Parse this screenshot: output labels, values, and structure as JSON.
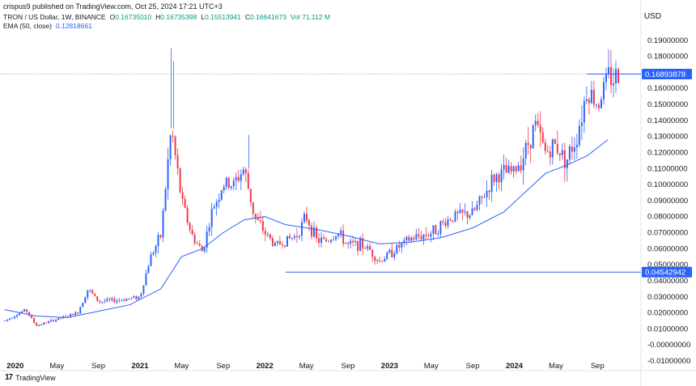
{
  "header": {
    "publisher": "crispus9 published on TradingView.com, Oct 25, 2024 17:21 UTC+3",
    "symbol": "TRON / US Dollar, 1W, BINANCE",
    "ohlc": [
      {
        "key": "O",
        "value": "0.16735010"
      },
      {
        "key": "H",
        "value": "0.16735398"
      },
      {
        "key": "L",
        "value": "0.15513941"
      },
      {
        "key": "C",
        "value": "0.16641673"
      }
    ],
    "vol": "Vol 71.112 M",
    "ema_label": "EMA (50, close)",
    "ema_value": "0.12818661",
    "currency": "USD"
  },
  "footer": {
    "brand": "TradingView",
    "logo": "17"
  },
  "colors": {
    "up": "#2962ff",
    "down": "#f23645",
    "ema": "#2962ff",
    "hline": "#2962ff",
    "price_dots": "#9598a1"
  },
  "chart_data": {
    "type": "candlestick",
    "title": "TRON / US Dollar, 1W, BINANCE",
    "y_axis": {
      "side": "right",
      "range": [
        -0.01,
        0.2
      ],
      "ticks": [
        "0.19000000",
        "0.18000000",
        "0.16000000",
        "0.15000000",
        "0.14000000",
        "0.13000000",
        "0.12000000",
        "0.11000000",
        "0.10000000",
        "0.09000000",
        "0.08000000",
        "0.07000000",
        "0.06000000",
        "0.05000000",
        "0.04000000",
        "0.03000000",
        "0.02000000",
        "0.01000000",
        "-0.00000000",
        "-0.01000000"
      ]
    },
    "x_ticks": [
      "2020",
      "May",
      "Sep",
      "2021",
      "May",
      "Sep",
      "2022",
      "May",
      "Sep",
      "2023",
      "May",
      "Sep",
      "2024",
      "May",
      "Sep"
    ],
    "x_tick_dates": [
      "2020-01",
      "2020-05",
      "2020-09",
      "2021-01",
      "2021-05",
      "2021-09",
      "2022-01",
      "2022-05",
      "2022-09",
      "2023-01",
      "2023-05",
      "2023-09",
      "2024-01",
      "2024-05",
      "2024-09"
    ],
    "price_labels": [
      {
        "value": 0.16893878,
        "label": "0.16893878",
        "style": "dotted"
      },
      {
        "value": 0.04542942,
        "label": "0.04542942",
        "style": "solid"
      }
    ],
    "horizontal_lines": [
      {
        "value": 0.16893878,
        "from": "2024-08",
        "to": "2024-10"
      },
      {
        "value": 0.04542942,
        "from": "2022-03",
        "to": "2024-10"
      }
    ],
    "anchor_points": [
      [
        "2019-12",
        0.015
      ],
      [
        "2020-02",
        0.022
      ],
      [
        "2020-03",
        0.012
      ],
      [
        "2020-05",
        0.016
      ],
      [
        "2020-07",
        0.02
      ],
      [
        "2020-08",
        0.035
      ],
      [
        "2020-09",
        0.027
      ],
      [
        "2020-11",
        0.028
      ],
      [
        "2021-01",
        0.03
      ],
      [
        "2021-02",
        0.055
      ],
      [
        "2021-03",
        0.068
      ],
      [
        "2021-04",
        0.135
      ],
      [
        "2021-05",
        0.09
      ],
      [
        "2021-06",
        0.068
      ],
      [
        "2021-07",
        0.058
      ],
      [
        "2021-08",
        0.085
      ],
      [
        "2021-09",
        0.1
      ],
      [
        "2021-10",
        0.1
      ],
      [
        "2021-11",
        0.11
      ],
      [
        "2021-12",
        0.08
      ],
      [
        "2022-01",
        0.07
      ],
      [
        "2022-02",
        0.062
      ],
      [
        "2022-03",
        0.065
      ],
      [
        "2022-04",
        0.068
      ],
      [
        "2022-05",
        0.08
      ],
      [
        "2022-06",
        0.065
      ],
      [
        "2022-07",
        0.065
      ],
      [
        "2022-08",
        0.07
      ],
      [
        "2022-09",
        0.062
      ],
      [
        "2022-10",
        0.063
      ],
      [
        "2022-11",
        0.06
      ],
      [
        "2022-12",
        0.052
      ],
      [
        "2023-01",
        0.057
      ],
      [
        "2023-03",
        0.066
      ],
      [
        "2023-05",
        0.07
      ],
      [
        "2023-07",
        0.08
      ],
      [
        "2023-09",
        0.082
      ],
      [
        "2023-10",
        0.092
      ],
      [
        "2023-11",
        0.104
      ],
      [
        "2023-12",
        0.107
      ],
      [
        "2024-01",
        0.108
      ],
      [
        "2024-02",
        0.12
      ],
      [
        "2024-03",
        0.138
      ],
      [
        "2024-04",
        0.12
      ],
      [
        "2024-05",
        0.125
      ],
      [
        "2024-06",
        0.115
      ],
      [
        "2024-07",
        0.13
      ],
      [
        "2024-08",
        0.16
      ],
      [
        "2024-09",
        0.15
      ],
      [
        "2024-10",
        0.167
      ]
    ],
    "ema": [
      [
        "2019-12",
        0.022
      ],
      [
        "2020-03",
        0.018
      ],
      [
        "2020-06",
        0.017
      ],
      [
        "2020-09",
        0.021
      ],
      [
        "2020-12",
        0.025
      ],
      [
        "2021-03",
        0.035
      ],
      [
        "2021-05",
        0.055
      ],
      [
        "2021-07",
        0.06
      ],
      [
        "2021-09",
        0.07
      ],
      [
        "2021-11",
        0.078
      ],
      [
        "2022-01",
        0.08
      ],
      [
        "2022-03",
        0.075
      ],
      [
        "2022-06",
        0.072
      ],
      [
        "2022-09",
        0.068
      ],
      [
        "2022-12",
        0.063
      ],
      [
        "2023-03",
        0.064
      ],
      [
        "2023-06",
        0.067
      ],
      [
        "2023-09",
        0.073
      ],
      [
        "2023-12",
        0.083
      ],
      [
        "2024-02",
        0.095
      ],
      [
        "2024-04",
        0.107
      ],
      [
        "2024-06",
        0.112
      ],
      [
        "2024-08",
        0.118
      ],
      [
        "2024-10",
        0.128
      ]
    ],
    "spikes": [
      {
        "date": "2021-04",
        "high": 0.185
      },
      {
        "date": "2021-04",
        "high": 0.177
      },
      {
        "date": "2021-11",
        "high": 0.131
      }
    ]
  }
}
